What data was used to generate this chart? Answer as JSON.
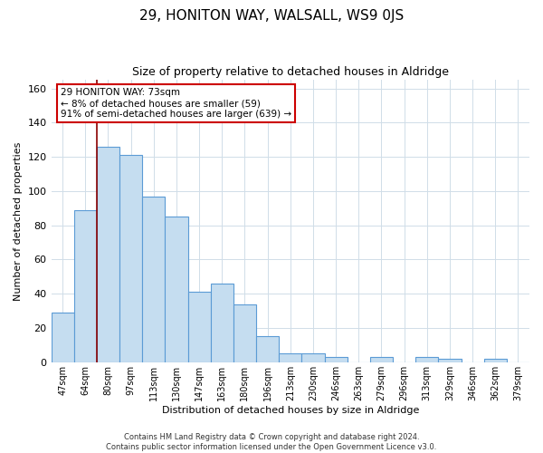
{
  "title": "29, HONITON WAY, WALSALL, WS9 0JS",
  "subtitle": "Size of property relative to detached houses in Aldridge",
  "xlabel": "Distribution of detached houses by size in Aldridge",
  "ylabel": "Number of detached properties",
  "bar_labels": [
    "47sqm",
    "64sqm",
    "80sqm",
    "97sqm",
    "113sqm",
    "130sqm",
    "147sqm",
    "163sqm",
    "180sqm",
    "196sqm",
    "213sqm",
    "230sqm",
    "246sqm",
    "263sqm",
    "279sqm",
    "296sqm",
    "313sqm",
    "329sqm",
    "346sqm",
    "362sqm",
    "379sqm"
  ],
  "bar_values": [
    29,
    89,
    126,
    121,
    97,
    85,
    41,
    46,
    34,
    15,
    5,
    5,
    3,
    0,
    3,
    0,
    3,
    2,
    0,
    2,
    0
  ],
  "bar_color": "#c5ddf0",
  "bar_edge_color": "#5b9bd5",
  "ylim": [
    0,
    165
  ],
  "yticks": [
    0,
    20,
    40,
    60,
    80,
    100,
    120,
    140,
    160
  ],
  "vline_x": 1.5,
  "vline_color": "#8b0000",
  "annotation_title": "29 HONITON WAY: 73sqm",
  "annotation_line1": "← 8% of detached houses are smaller (59)",
  "annotation_line2": "91% of semi-detached houses are larger (639) →",
  "annotation_box_facecolor": "#ffffff",
  "annotation_box_edgecolor": "#cc0000",
  "footer_line1": "Contains HM Land Registry data © Crown copyright and database right 2024.",
  "footer_line2": "Contains public sector information licensed under the Open Government Licence v3.0.",
  "background_color": "#ffffff",
  "grid_color": "#d0dde8"
}
